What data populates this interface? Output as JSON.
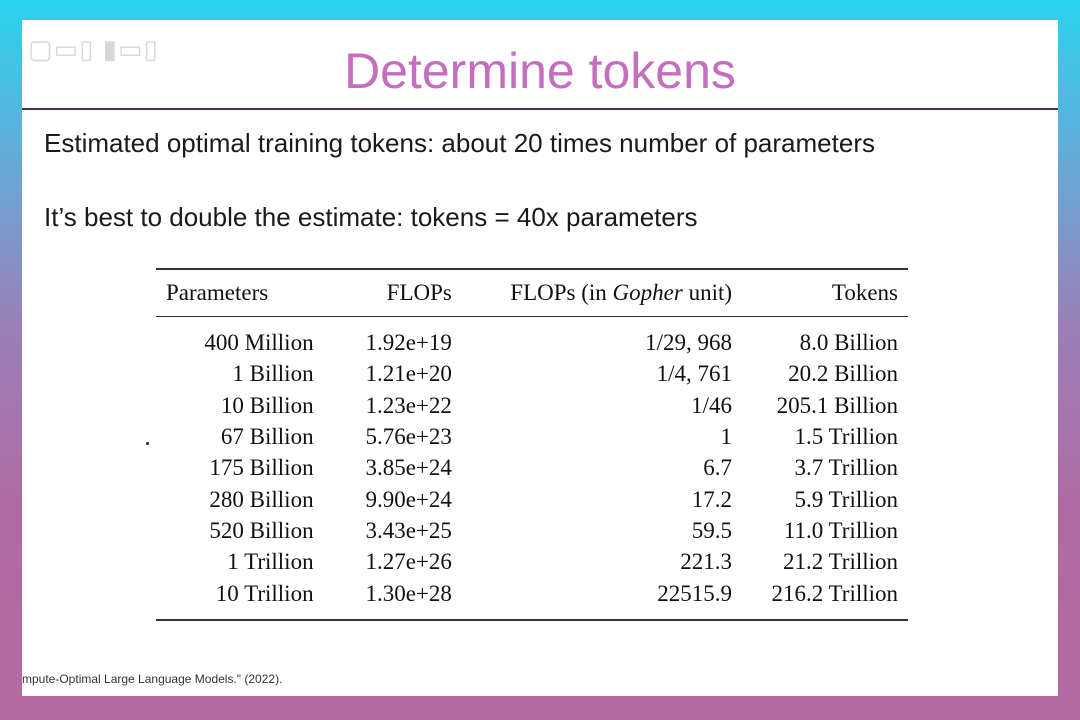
{
  "slide": {
    "title": "Determine tokens",
    "line1": "Estimated optimal training tokens: about 20 times number of parameters",
    "line2": "It’s best to double the estimate: tokens = 40x parameters",
    "footnote": "mpute-Optimal Large Language Models.\"  (2022).",
    "title_color": "#c56ec0"
  },
  "table": {
    "headers": {
      "parameters": "Parameters",
      "flops": "FLOPs",
      "gopher_prefix": "FLOPs (in ",
      "gopher_italic": "Gopher",
      "gopher_suffix": " unit)",
      "tokens": "Tokens"
    },
    "rows": [
      {
        "parameters": "400 Million",
        "flops": "1.92e+19",
        "gopher": "1/29, 968",
        "tokens": "8.0 Billion"
      },
      {
        "parameters": "1 Billion",
        "flops": "1.21e+20",
        "gopher": "1/4, 761",
        "tokens": "20.2 Billion"
      },
      {
        "parameters": "10 Billion",
        "flops": "1.23e+22",
        "gopher": "1/46",
        "tokens": "205.1 Billion"
      },
      {
        "parameters": "67 Billion",
        "flops": "5.76e+23",
        "gopher": "1",
        "tokens": "1.5 Trillion"
      },
      {
        "parameters": "175 Billion",
        "flops": "3.85e+24",
        "gopher": "6.7",
        "tokens": "3.7 Trillion"
      },
      {
        "parameters": "280 Billion",
        "flops": "9.90e+24",
        "gopher": "17.2",
        "tokens": "5.9 Trillion"
      },
      {
        "parameters": "520 Billion",
        "flops": "3.43e+25",
        "gopher": "59.5",
        "tokens": "11.0 Trillion"
      },
      {
        "parameters": "1 Trillion",
        "flops": "1.27e+26",
        "gopher": "221.3",
        "tokens": "21.2 Trillion"
      },
      {
        "parameters": "10 Trillion",
        "flops": "1.30e+28",
        "gopher": "22515.9",
        "tokens": "216.2 Trillion"
      }
    ]
  }
}
